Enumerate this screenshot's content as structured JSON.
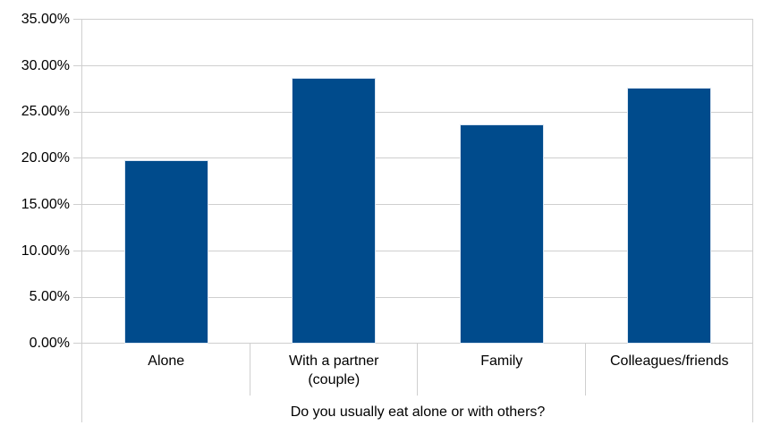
{
  "chart_data": {
    "type": "bar",
    "title": "",
    "categories": [
      "Alone",
      "With a partner (couple)",
      "Family",
      "Colleagues/friends"
    ],
    "values": [
      19.8,
      28.7,
      23.7,
      27.7
    ],
    "unit": "%",
    "xlabel": "Do you usually eat alone or with others?",
    "ylabel": "",
    "ylim": [
      0,
      35
    ],
    "yticks": [
      0,
      5,
      10,
      15,
      20,
      25,
      30,
      35
    ],
    "ytick_labels": [
      "0.00%",
      "5.00%",
      "10.00%",
      "15.00%",
      "20.00%",
      "25.00%",
      "30.00%",
      "35.00%"
    ],
    "grid": true,
    "legend": false,
    "colors": {
      "bar": "#004b8c",
      "bar_border": "#dbe6f2",
      "gridline": "#cfcfcf",
      "axis_line": "#cfcfcf",
      "text": "#000000",
      "background": "#ffffff"
    }
  }
}
